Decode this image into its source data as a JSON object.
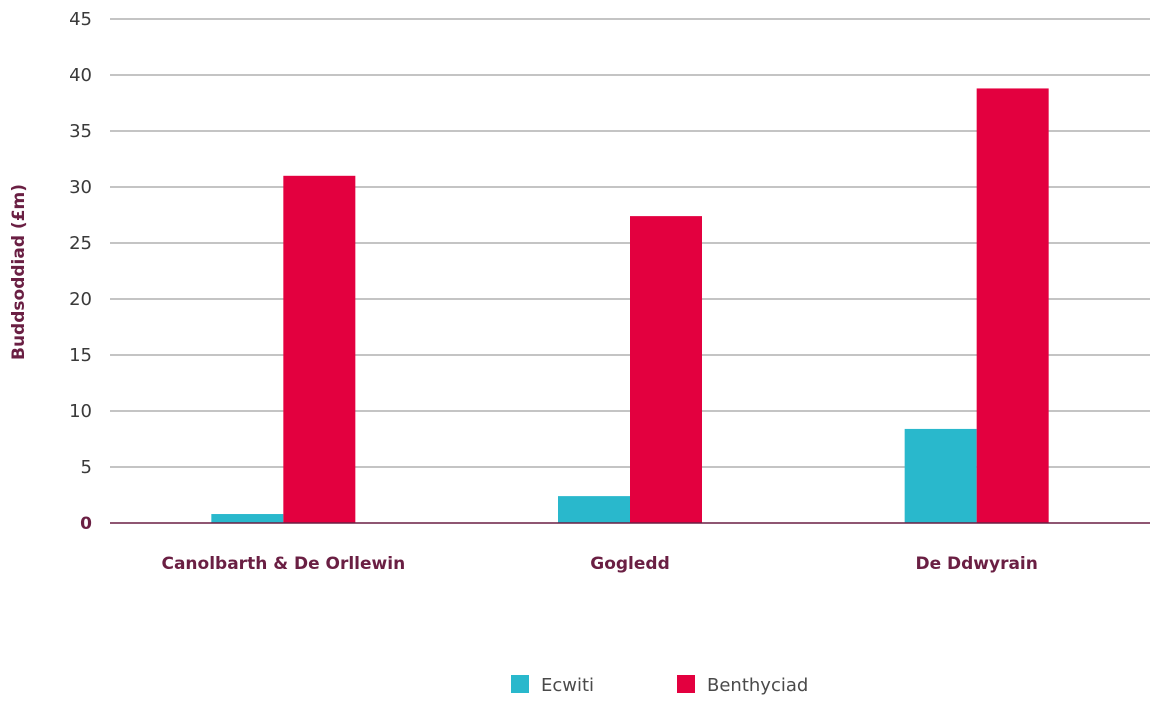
{
  "chart_data": {
    "type": "bar",
    "categories": [
      "Canolbarth & De Orllewin",
      "Gogledd",
      "De Ddwyrain"
    ],
    "series": [
      {
        "name": "Ecwiti",
        "color": "#29b8cc",
        "values": [
          0.8,
          2.4,
          8.4
        ]
      },
      {
        "name": "Benthyciad",
        "color": "#e3003f",
        "values": [
          31.0,
          27.4,
          38.8
        ]
      }
    ],
    "title": "",
    "xlabel": "",
    "ylabel": "Buddsoddiad (£m)",
    "ylim": [
      0,
      45
    ],
    "yticks": [
      0,
      5,
      10,
      15,
      20,
      25,
      30,
      35,
      40,
      45
    ],
    "grid": true,
    "legend_position": "bottom-center"
  }
}
